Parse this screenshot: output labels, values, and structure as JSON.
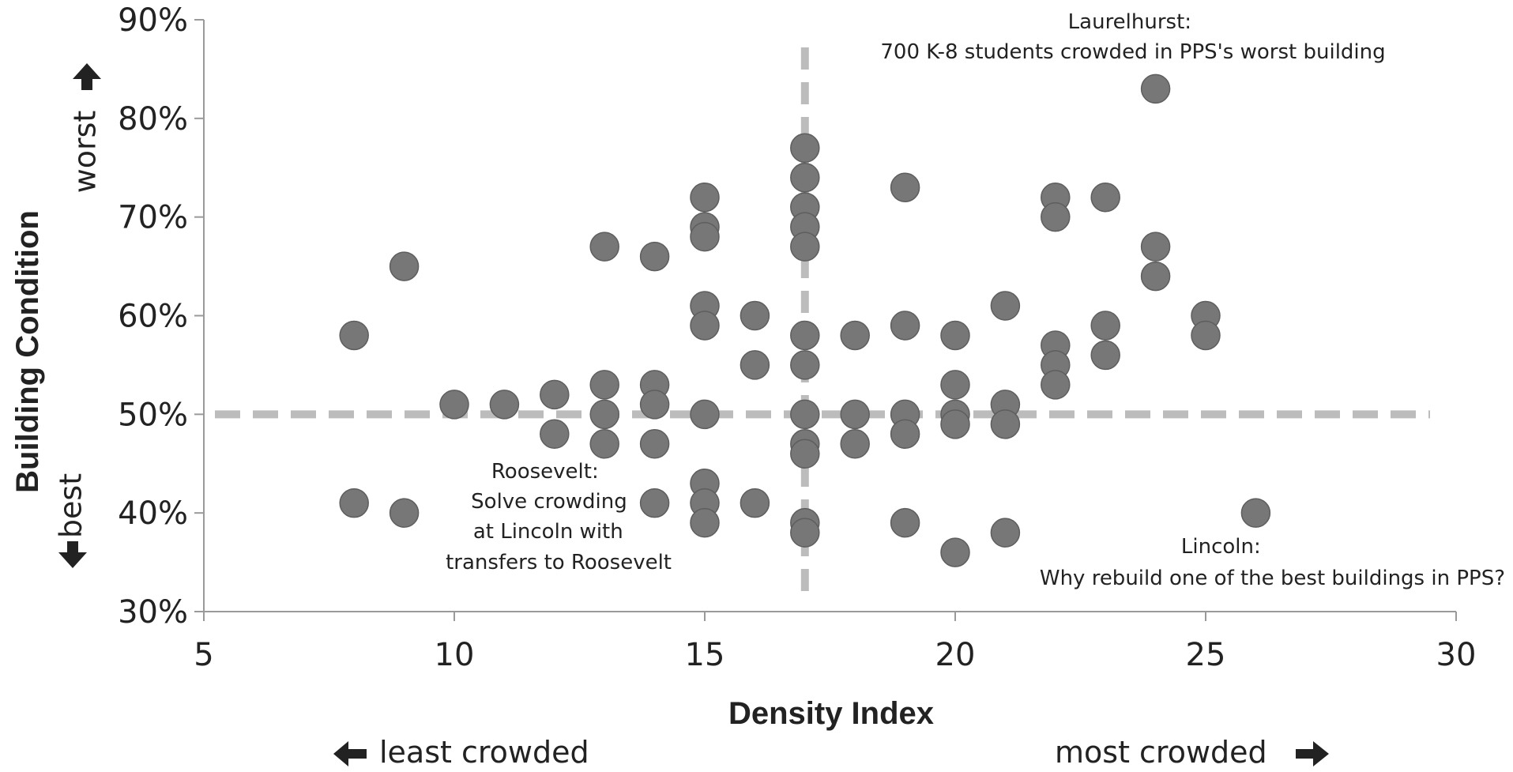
{
  "chart_data": {
    "type": "scatter",
    "title": "",
    "xlabel": "Density Index",
    "ylabel": "Building Condition",
    "xlim": [
      5,
      30
    ],
    "ylim": [
      30,
      90
    ],
    "x_ticks": [
      "5",
      "10",
      "15",
      "20",
      "25",
      "30"
    ],
    "y_ticks": [
      "30%",
      "40%",
      "50%",
      "60%",
      "70%",
      "80%",
      "90%"
    ],
    "y_direction_labels": {
      "top": "worst",
      "bottom": "best"
    },
    "x_direction_labels": {
      "left": "least crowded",
      "right": "most crowded"
    },
    "reference_lines": {
      "x": 17,
      "y": 50
    },
    "annotations": [
      {
        "lines": [
          "Laurelhurst:",
          "700 K-8 students crowded in PPS's worst building"
        ]
      },
      {
        "lines": [
          "Roosevelt:",
          "Solve crowding",
          "at Lincoln with",
          "transfers to Roosevelt"
        ]
      },
      {
        "lines": [
          "Lincoln:",
          "Why rebuild one of the best buildings in PPS?"
        ]
      }
    ],
    "colors": {
      "point": "#777777",
      "reference_line": "#bcbcbc",
      "axis": "#9a9a9a"
    },
    "points": [
      {
        "x": 8,
        "y": 58
      },
      {
        "x": 8,
        "y": 41
      },
      {
        "x": 9,
        "y": 65
      },
      {
        "x": 9,
        "y": 40
      },
      {
        "x": 10,
        "y": 51
      },
      {
        "x": 11,
        "y": 51
      },
      {
        "x": 12,
        "y": 52
      },
      {
        "x": 12,
        "y": 48
      },
      {
        "x": 13,
        "y": 67
      },
      {
        "x": 13,
        "y": 53
      },
      {
        "x": 13,
        "y": 50
      },
      {
        "x": 13,
        "y": 47
      },
      {
        "x": 14,
        "y": 66
      },
      {
        "x": 14,
        "y": 53
      },
      {
        "x": 14,
        "y": 51
      },
      {
        "x": 14,
        "y": 47
      },
      {
        "x": 14,
        "y": 41
      },
      {
        "x": 15,
        "y": 72
      },
      {
        "x": 15,
        "y": 69
      },
      {
        "x": 15,
        "y": 68
      },
      {
        "x": 15,
        "y": 61
      },
      {
        "x": 15,
        "y": 59
      },
      {
        "x": 15,
        "y": 50
      },
      {
        "x": 15,
        "y": 43
      },
      {
        "x": 15,
        "y": 41
      },
      {
        "x": 15,
        "y": 39
      },
      {
        "x": 16,
        "y": 60
      },
      {
        "x": 16,
        "y": 55
      },
      {
        "x": 16,
        "y": 41
      },
      {
        "x": 17,
        "y": 77
      },
      {
        "x": 17,
        "y": 74
      },
      {
        "x": 17,
        "y": 71
      },
      {
        "x": 17,
        "y": 69
      },
      {
        "x": 17,
        "y": 67
      },
      {
        "x": 17,
        "y": 58
      },
      {
        "x": 17,
        "y": 55
      },
      {
        "x": 17,
        "y": 50
      },
      {
        "x": 17,
        "y": 47
      },
      {
        "x": 17,
        "y": 46
      },
      {
        "x": 17,
        "y": 39
      },
      {
        "x": 17,
        "y": 38
      },
      {
        "x": 18,
        "y": 58
      },
      {
        "x": 18,
        "y": 50
      },
      {
        "x": 18,
        "y": 47
      },
      {
        "x": 19,
        "y": 73
      },
      {
        "x": 19,
        "y": 59
      },
      {
        "x": 19,
        "y": 50
      },
      {
        "x": 19,
        "y": 48
      },
      {
        "x": 19,
        "y": 39
      },
      {
        "x": 20,
        "y": 58
      },
      {
        "x": 20,
        "y": 53
      },
      {
        "x": 20,
        "y": 50
      },
      {
        "x": 20,
        "y": 49
      },
      {
        "x": 20,
        "y": 36
      },
      {
        "x": 21,
        "y": 61
      },
      {
        "x": 21,
        "y": 51
      },
      {
        "x": 21,
        "y": 49
      },
      {
        "x": 21,
        "y": 38
      },
      {
        "x": 22,
        "y": 72
      },
      {
        "x": 22,
        "y": 70
      },
      {
        "x": 22,
        "y": 57
      },
      {
        "x": 22,
        "y": 55
      },
      {
        "x": 22,
        "y": 53
      },
      {
        "x": 23,
        "y": 72
      },
      {
        "x": 23,
        "y": 59
      },
      {
        "x": 23,
        "y": 56
      },
      {
        "x": 24,
        "y": 83
      },
      {
        "x": 24,
        "y": 67
      },
      {
        "x": 24,
        "y": 64
      },
      {
        "x": 25,
        "y": 60
      },
      {
        "x": 25,
        "y": 58
      },
      {
        "x": 26,
        "y": 40
      }
    ]
  }
}
